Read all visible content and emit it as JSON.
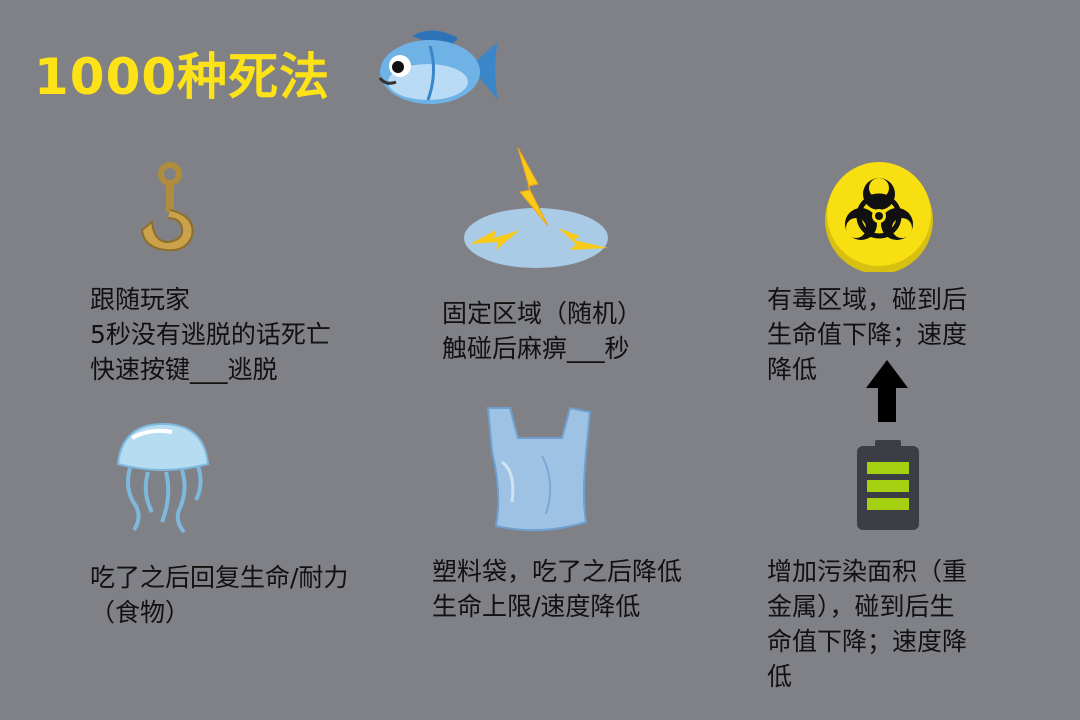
{
  "title": "1000种死法",
  "items": {
    "hook": "跟随玩家\n5秒没有逃脱的话死亡\n快速按键___逃脱",
    "zone": "固定区域（随机）\n触碰后麻痹___秒",
    "toxic": "有毒区域，碰到后\n生命值下降；速度\n降低",
    "jelly": "吃了之后回复生命/耐力\n（食物）",
    "bag": "塑料袋，吃了之后降低\n生命上限/速度降低",
    "metal": "增加污染面积（重\n金属），碰到后生\n命值下降；速度降\n低"
  },
  "icons": {
    "title_icon": "fish-icon",
    "hook": "hook-icon",
    "zone": "lightning-zone-icon",
    "toxic": "biohazard-icon",
    "jelly": "jellyfish-icon",
    "bag": "plastic-bag-icon",
    "metal": "battery-icon",
    "arrow": "arrow-up-icon"
  },
  "colors": {
    "background": "#808187",
    "title": "#fde218",
    "text": "#111111",
    "hazard_yellow": "#f7df12",
    "battery_green": "#a6d113"
  }
}
